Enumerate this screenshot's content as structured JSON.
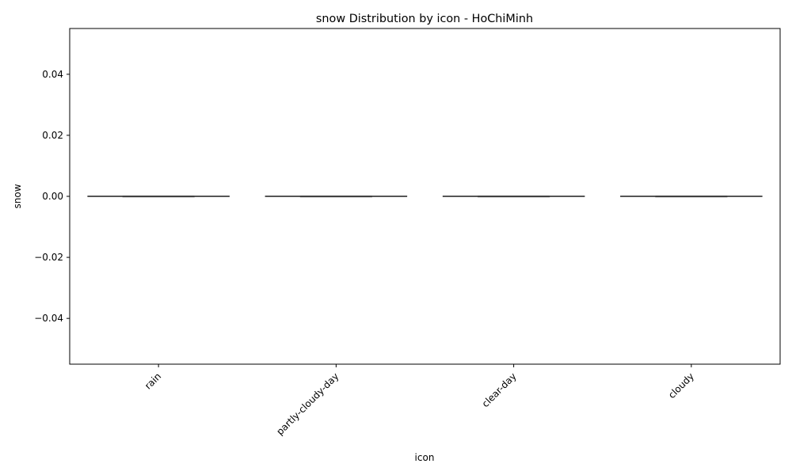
{
  "chart_data": {
    "type": "box",
    "title": "snow Distribution by icon - HoChiMinh",
    "xlabel": "icon",
    "ylabel": "snow",
    "categories": [
      "rain",
      "partly-cloudy-day",
      "clear-day",
      "cloudy"
    ],
    "boxes": [
      {
        "category": "rain",
        "min": 0.0,
        "q1": 0.0,
        "median": 0.0,
        "q3": 0.0,
        "max": 0.0
      },
      {
        "category": "partly-cloudy-day",
        "min": 0.0,
        "q1": 0.0,
        "median": 0.0,
        "q3": 0.0,
        "max": 0.0
      },
      {
        "category": "clear-day",
        "min": 0.0,
        "q1": 0.0,
        "median": 0.0,
        "q3": 0.0,
        "max": 0.0
      },
      {
        "category": "cloudy",
        "min": 0.0,
        "q1": 0.0,
        "median": 0.0,
        "q3": 0.0,
        "max": 0.0
      }
    ],
    "ylim": [
      -0.055,
      0.055
    ],
    "yticks": [
      0.04,
      0.02,
      0.0,
      -0.02,
      -0.04
    ],
    "ytick_labels": [
      "0.04",
      "0.02",
      "0.00",
      "−0.02",
      "−0.04"
    ],
    "grid": false,
    "line_color": "#3f3f3f",
    "frame_color": "#000000"
  }
}
